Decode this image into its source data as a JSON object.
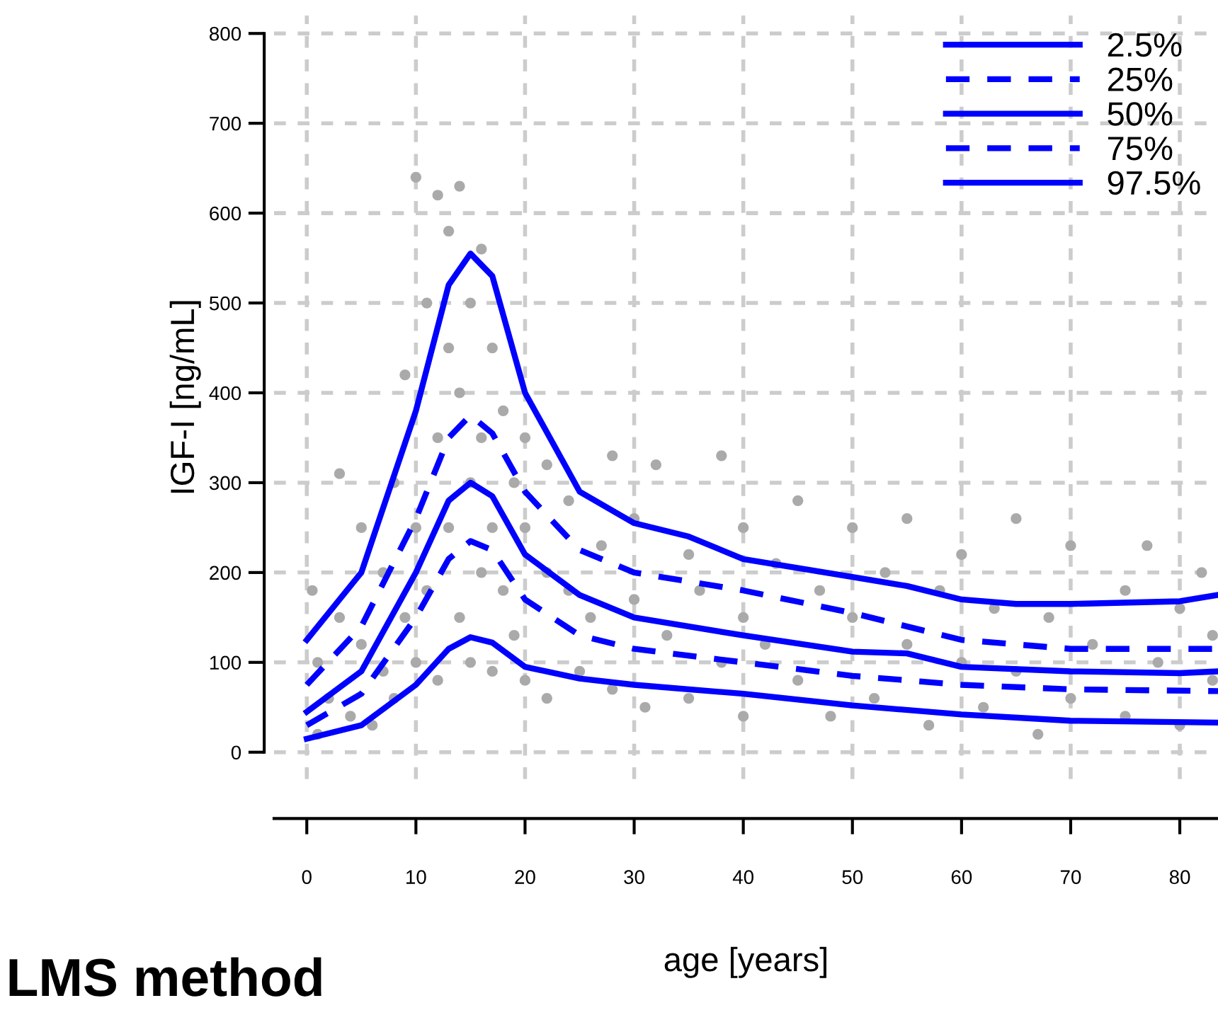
{
  "chart_data": {
    "type": "line",
    "title": "LMS method",
    "xlabel": "age [years]",
    "ylabel": "IGF-I [ng/mL]",
    "xlim": [
      -3,
      83.5
    ],
    "ylim": [
      -30,
      820
    ],
    "xticks": [
      0,
      10,
      20,
      30,
      40,
      50,
      60,
      70,
      80
    ],
    "yticks": [
      0,
      100,
      200,
      300,
      400,
      500,
      600,
      700,
      800
    ],
    "grid": true,
    "legend": "top right",
    "series": [
      {
        "type": "scatter",
        "color": "#aaaaaa",
        "marker": "circle",
        "x": [
          0.5,
          1,
          1,
          2,
          3,
          3,
          4,
          5,
          5,
          6,
          7,
          7,
          8,
          8,
          9,
          9,
          10,
          10,
          10,
          11,
          11,
          12,
          12,
          12,
          13,
          13,
          13,
          14,
          14,
          14,
          15,
          15,
          15,
          16,
          16,
          16,
          17,
          17,
          17,
          18,
          18,
          19,
          19,
          20,
          20,
          20,
          22,
          22,
          22,
          24,
          24,
          25,
          26,
          27,
          28,
          28,
          30,
          30,
          31,
          32,
          33,
          35,
          35,
          36,
          38,
          38,
          40,
          40,
          40,
          42,
          43,
          45,
          45,
          47,
          48,
          50,
          50,
          52,
          53,
          55,
          55,
          57,
          58,
          60,
          60,
          62,
          63,
          65,
          65,
          67,
          68,
          70,
          70,
          72,
          75,
          75,
          77,
          78,
          80,
          80,
          82,
          83,
          83
        ],
        "values": [
          180,
          20,
          100,
          60,
          150,
          310,
          40,
          120,
          250,
          30,
          200,
          90,
          300,
          60,
          150,
          420,
          640,
          100,
          250,
          500,
          180,
          350,
          620,
          80,
          450,
          250,
          580,
          400,
          150,
          630,
          300,
          500,
          100,
          560,
          350,
          200,
          450,
          250,
          90,
          380,
          180,
          300,
          130,
          250,
          350,
          80,
          200,
          320,
          60,
          180,
          280,
          90,
          150,
          230,
          330,
          70,
          170,
          260,
          50,
          320,
          130,
          220,
          60,
          180,
          330,
          100,
          250,
          150,
          40,
          120,
          210,
          80,
          280,
          180,
          40,
          150,
          250,
          60,
          200,
          120,
          260,
          30,
          180,
          100,
          220,
          50,
          160,
          260,
          90,
          20,
          150,
          230,
          60,
          120,
          180,
          40,
          230,
          100,
          160,
          30,
          200,
          80,
          130
        ]
      },
      {
        "name": "2.5%",
        "color": "#0000ff",
        "line_style": "solid",
        "x": [
          0,
          5,
          10,
          13,
          15,
          17,
          20,
          25,
          30,
          40,
          50,
          60,
          70,
          83.5
        ],
        "values": [
          15,
          30,
          75,
          115,
          128,
          122,
          95,
          82,
          75,
          65,
          52,
          42,
          35,
          33
        ]
      },
      {
        "name": "25%",
        "color": "#0000ff",
        "line_style": "dashed",
        "x": [
          0,
          5,
          10,
          13,
          15,
          17,
          20,
          25,
          30,
          40,
          50,
          60,
          70,
          83.5
        ],
        "values": [
          30,
          65,
          150,
          215,
          235,
          225,
          170,
          130,
          115,
          100,
          85,
          75,
          70,
          68
        ]
      },
      {
        "name": "50%",
        "color": "#0000ff",
        "line_style": "solid",
        "x": [
          0,
          5,
          10,
          13,
          15,
          17,
          20,
          25,
          30,
          40,
          50,
          55,
          60,
          70,
          80,
          83.5
        ],
        "values": [
          45,
          90,
          200,
          280,
          300,
          285,
          220,
          175,
          150,
          130,
          112,
          110,
          95,
          90,
          88,
          90
        ]
      },
      {
        "name": "75%",
        "color": "#0000ff",
        "line_style": "dashed",
        "x": [
          0,
          5,
          10,
          13,
          15,
          17,
          20,
          25,
          30,
          40,
          50,
          60,
          70,
          83.5
        ],
        "values": [
          75,
          140,
          260,
          350,
          375,
          355,
          290,
          225,
          200,
          180,
          155,
          125,
          115,
          115
        ]
      },
      {
        "name": "97.5%",
        "color": "#0000ff",
        "line_style": "solid",
        "x": [
          0,
          5,
          10,
          13,
          15,
          17,
          20,
          25,
          30,
          35,
          40,
          50,
          55,
          60,
          65,
          70,
          80,
          83.5
        ],
        "values": [
          125,
          200,
          380,
          520,
          555,
          530,
          400,
          290,
          255,
          240,
          215,
          195,
          185,
          170,
          165,
          165,
          168,
          175
        ]
      }
    ]
  }
}
